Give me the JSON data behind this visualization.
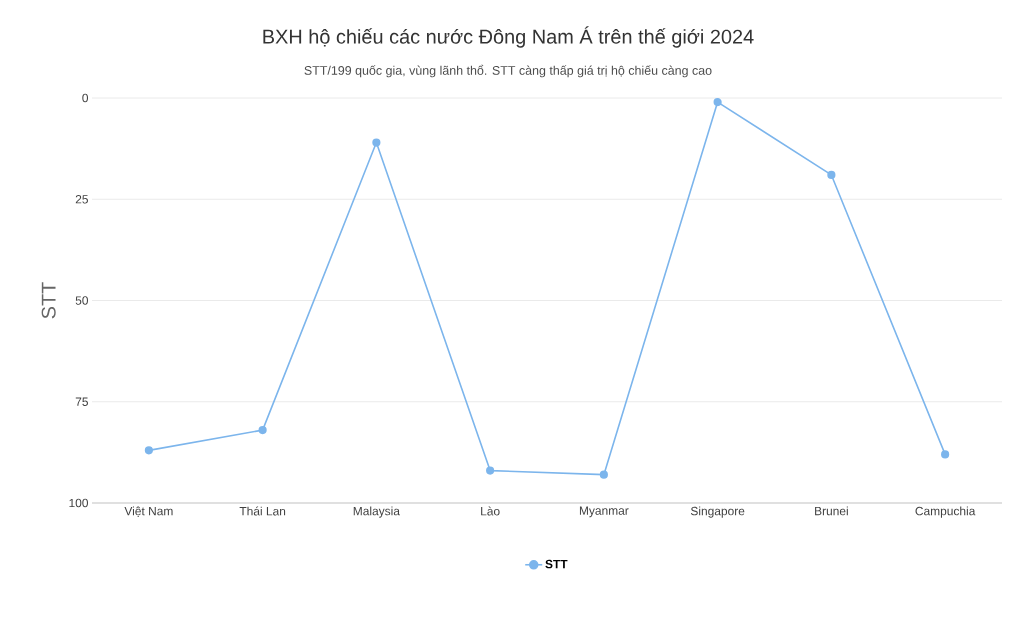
{
  "chart_data": {
    "type": "line",
    "title": "BXH hộ chiếu các nước Đông Nam Á trên thế giới 2024",
    "subtitle": "STT/199 quốc gia, vùng lãnh thổ. STT càng thấp giá trị hộ chiếu càng cao",
    "ylabel": "STT",
    "categories": [
      "Việt Nam",
      "Thái Lan",
      "Malaysia",
      "Lào",
      "Myanmar",
      "Singapore",
      "Brunei",
      "Campuchia"
    ],
    "series": [
      {
        "name": "STT",
        "color": "#7cb5ec",
        "values": [
          87,
          82,
          11,
          92,
          93,
          1,
          19,
          88
        ]
      }
    ],
    "ylim": [
      100,
      0
    ],
    "yticks": [
      0,
      25,
      50,
      75,
      100
    ],
    "grid": "y",
    "legend": "bottom",
    "marker": "circle",
    "line_style": "solid"
  }
}
